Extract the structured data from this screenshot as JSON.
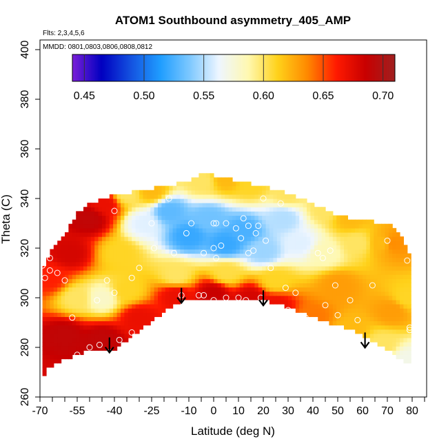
{
  "chart_data": {
    "type": "heatmap",
    "title": "ATOM1 Southbound asymmetry_405_AMP",
    "flights_note": "Flts: 2,3,4,5,6",
    "dates_note": "MMDD: 0801,0803,0806,0808,0812",
    "xlabel": "Latitude (deg N)",
    "ylabel": "Theta (C)",
    "xlim": [
      -70,
      85
    ],
    "ylim": [
      260,
      403
    ],
    "x_tick_labels": [
      "-70",
      "-55",
      "-40",
      "-25",
      "-10",
      "0",
      "10",
      "20",
      "30",
      "40",
      "50",
      "60",
      "70",
      "80"
    ],
    "x_ticks": [
      -70,
      -55,
      -40,
      -25,
      -10,
      0,
      10,
      20,
      30,
      40,
      50,
      60,
      70,
      80
    ],
    "x_minor_ticks": [
      -65,
      -60,
      -50,
      -45,
      -35,
      -30,
      -20,
      -15,
      -5,
      5,
      15,
      25,
      35,
      45,
      55,
      65,
      75,
      85
    ],
    "y_tick_labels": [
      "260",
      "280",
      "300",
      "320",
      "340",
      "360",
      "380",
      "400"
    ],
    "y_ticks": [
      260,
      280,
      300,
      320,
      340,
      360,
      380,
      400
    ],
    "colorbar": {
      "range": [
        0.44,
        0.71
      ],
      "tick_labels": [
        "0.45",
        "0.50",
        "0.55",
        "0.60",
        "0.65",
        "0.70"
      ],
      "ticks": [
        0.45,
        0.5,
        0.55,
        0.6,
        0.65,
        0.7
      ],
      "colors": [
        "#7a1fd8",
        "#0000c0",
        "#1452e0",
        "#1f9dff",
        "#7dc8ff",
        "#eef6ff",
        "#fff8b0",
        "#ffd21a",
        "#ff8a00",
        "#ff1a00",
        "#c80000",
        "#a02020"
      ]
    },
    "domain_lower": [
      [
        -69,
        266
      ],
      [
        -68,
        270
      ],
      [
        -66,
        272
      ],
      [
        -62,
        274
      ],
      [
        -56,
        277
      ],
      [
        -50,
        279
      ],
      [
        -44,
        279
      ],
      [
        -42,
        278
      ],
      [
        -35,
        283
      ],
      [
        -28,
        288
      ],
      [
        -22,
        293
      ],
      [
        -15,
        298
      ],
      [
        -8,
        300
      ],
      [
        0,
        300
      ],
      [
        10,
        300
      ],
      [
        20,
        299
      ],
      [
        30,
        296
      ],
      [
        40,
        292
      ],
      [
        50,
        289
      ],
      [
        60,
        285
      ],
      [
        67,
        281
      ],
      [
        72,
        278
      ],
      [
        78,
        273
      ]
    ],
    "domain_upper": [
      [
        -69,
        312
      ],
      [
        -66,
        318
      ],
      [
        -62,
        323
      ],
      [
        -59,
        327
      ],
      [
        -55,
        334
      ],
      [
        -50,
        338
      ],
      [
        -45,
        340
      ],
      [
        -38,
        342
      ],
      [
        -30,
        343
      ],
      [
        -20,
        345
      ],
      [
        -10,
        347
      ],
      [
        -4,
        350
      ],
      [
        2,
        349
      ],
      [
        10,
        347
      ],
      [
        20,
        345
      ],
      [
        30,
        342
      ],
      [
        40,
        338
      ],
      [
        48,
        334
      ],
      [
        55,
        332
      ],
      [
        62,
        331
      ],
      [
        68,
        330
      ],
      [
        72,
        329
      ],
      [
        76,
        324
      ],
      [
        80,
        314
      ],
      [
        80,
        273
      ]
    ],
    "field_anchors": [
      {
        "lat": -70,
        "theta": 263,
        "value": 0.68
      },
      {
        "lat": -60,
        "theta": 285,
        "value": 0.69
      },
      {
        "lat": -45,
        "theta": 283,
        "value": 0.69
      },
      {
        "lat": -30,
        "theta": 292,
        "value": 0.67
      },
      {
        "lat": -15,
        "theta": 301,
        "value": 0.67
      },
      {
        "lat": 0,
        "theta": 302,
        "value": 0.685
      },
      {
        "lat": 15,
        "theta": 300,
        "value": 0.68
      },
      {
        "lat": 25,
        "theta": 297,
        "value": 0.67
      },
      {
        "lat": 40,
        "theta": 292,
        "value": 0.64
      },
      {
        "lat": 55,
        "theta": 287,
        "value": 0.62
      },
      {
        "lat": 68,
        "theta": 281,
        "value": 0.6
      },
      {
        "lat": 78,
        "theta": 275,
        "value": 0.57
      },
      {
        "lat": -66,
        "theta": 308,
        "value": 0.66
      },
      {
        "lat": -58,
        "theta": 318,
        "value": 0.68
      },
      {
        "lat": -50,
        "theta": 332,
        "value": 0.69
      },
      {
        "lat": -44,
        "theta": 338,
        "value": 0.67
      },
      {
        "lat": -55,
        "theta": 300,
        "value": 0.6
      },
      {
        "lat": -45,
        "theta": 300,
        "value": 0.58
      },
      {
        "lat": -35,
        "theta": 303,
        "value": 0.61
      },
      {
        "lat": -38,
        "theta": 318,
        "value": 0.61
      },
      {
        "lat": -28,
        "theta": 330,
        "value": 0.56
      },
      {
        "lat": -18,
        "theta": 335,
        "value": 0.53
      },
      {
        "lat": -10,
        "theta": 325,
        "value": 0.52
      },
      {
        "lat": -2,
        "theta": 332,
        "value": 0.535
      },
      {
        "lat": 5,
        "theta": 322,
        "value": 0.52
      },
      {
        "lat": 12,
        "theta": 327,
        "value": 0.525
      },
      {
        "lat": 20,
        "theta": 319,
        "value": 0.545
      },
      {
        "lat": 28,
        "theta": 332,
        "value": 0.55
      },
      {
        "lat": 35,
        "theta": 322,
        "value": 0.56
      },
      {
        "lat": 45,
        "theta": 318,
        "value": 0.585
      },
      {
        "lat": 58,
        "theta": 322,
        "value": 0.6
      },
      {
        "lat": 68,
        "theta": 322,
        "value": 0.62
      },
      {
        "lat": 72,
        "theta": 322,
        "value": 0.635
      },
      {
        "lat": 78,
        "theta": 300,
        "value": 0.61
      },
      {
        "lat": 72,
        "theta": 295,
        "value": 0.63
      },
      {
        "lat": -15,
        "theta": 309,
        "value": 0.6
      },
      {
        "lat": 5,
        "theta": 310,
        "value": 0.605
      },
      {
        "lat": 25,
        "theta": 307,
        "value": 0.61
      },
      {
        "lat": 50,
        "theta": 305,
        "value": 0.63
      },
      {
        "lat": -35,
        "theta": 342,
        "value": 0.6
      },
      {
        "lat": -25,
        "theta": 343,
        "value": 0.62
      },
      {
        "lat": -5,
        "theta": 347,
        "value": 0.6
      },
      {
        "lat": 5,
        "theta": 348,
        "value": 0.62
      },
      {
        "lat": 15,
        "theta": 346,
        "value": 0.61
      },
      {
        "lat": 30,
        "theta": 342,
        "value": 0.6
      },
      {
        "lat": 45,
        "theta": 336,
        "value": 0.6
      },
      {
        "lat": 55,
        "theta": 332,
        "value": 0.62
      }
    ],
    "observations": [
      [
        -69,
        313
      ],
      [
        -68,
        308
      ],
      [
        -66,
        311
      ],
      [
        -66,
        316
      ],
      [
        -63,
        310
      ],
      [
        -60,
        307
      ],
      [
        -57,
        292
      ],
      [
        -55,
        277
      ],
      [
        -50,
        280
      ],
      [
        -47,
        299
      ],
      [
        -46,
        281
      ],
      [
        -43,
        307
      ],
      [
        -42,
        278
      ],
      [
        -40,
        302
      ],
      [
        -40,
        335
      ],
      [
        -38,
        283
      ],
      [
        -33,
        308
      ],
      [
        -33,
        286
      ],
      [
        -30,
        312
      ],
      [
        -25,
        330
      ],
      [
        -24,
        320
      ],
      [
        -18,
        340
      ],
      [
        -16,
        318
      ],
      [
        -13,
        301
      ],
      [
        -11,
        326
      ],
      [
        -9,
        330
      ],
      [
        -6,
        301
      ],
      [
        -4,
        318
      ],
      [
        -4,
        301
      ],
      [
        0,
        330
      ],
      [
        0,
        320
      ],
      [
        0,
        299
      ],
      [
        1,
        330
      ],
      [
        1,
        316
      ],
      [
        3,
        321
      ],
      [
        5,
        330
      ],
      [
        5,
        300
      ],
      [
        9,
        328
      ],
      [
        10,
        300
      ],
      [
        11,
        324
      ],
      [
        12,
        332
      ],
      [
        13,
        299
      ],
      [
        14,
        329
      ],
      [
        14,
        318
      ],
      [
        16,
        319
      ],
      [
        17,
        326
      ],
      [
        18,
        329
      ],
      [
        19,
        300
      ],
      [
        20,
        340
      ],
      [
        21,
        323
      ],
      [
        23,
        312
      ],
      [
        27,
        338
      ],
      [
        29,
        304
      ],
      [
        30,
        295
      ],
      [
        33,
        302
      ],
      [
        37,
        292
      ],
      [
        42,
        318
      ],
      [
        44,
        316
      ],
      [
        45,
        297
      ],
      [
        47,
        319
      ],
      [
        49,
        305
      ],
      [
        50,
        293
      ],
      [
        55,
        299
      ],
      [
        58,
        291
      ],
      [
        64,
        305
      ],
      [
        70,
        323
      ],
      [
        76,
        330
      ],
      [
        78,
        315
      ],
      [
        79,
        288
      ],
      [
        79,
        287
      ]
    ],
    "arrows": [
      {
        "lat": -42,
        "theta": 284,
        "direction": "down"
      },
      {
        "lat": -13,
        "theta": 304,
        "direction": "down"
      },
      {
        "lat": 20,
        "theta": 303,
        "direction": "down"
      },
      {
        "lat": 61,
        "theta": 286,
        "direction": "down"
      }
    ],
    "grid": false
  }
}
